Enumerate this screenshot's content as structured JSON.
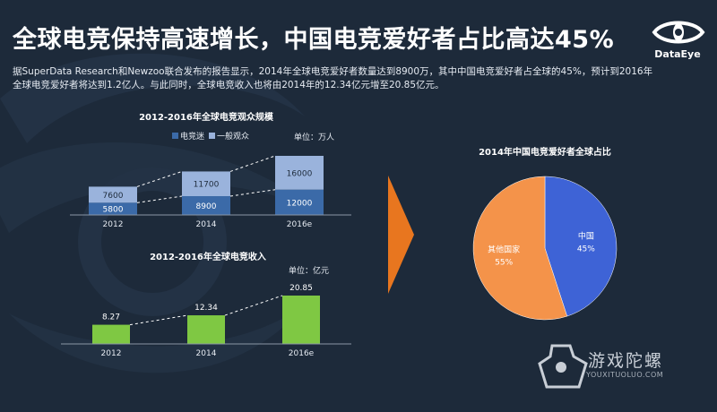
{
  "header": {
    "title": "全球电竞保持高速增长，中国电竞爱好者占比高达45%",
    "description": "据SuperData Research和Newzoo联合发布的报告显示，2014年全球电竞爱好者数量达到8900万，其中中国电竞爱好者占全球的45%，预计到2016年全球电竞爱好者将达到1.2亿人。与此同时，全球电竞收入也将由2014年的12.34亿元增至20.85亿元。",
    "brand": "DataEye"
  },
  "watermark": {
    "title": "游戏陀螺",
    "subtitle": "YOUXITUOLUO.COM"
  },
  "colors": {
    "background": "#1d2a3a",
    "esports_fans": "#3b6aa8",
    "casual_viewers": "#9ab3dc",
    "revenue_bar": "#7fc843",
    "china_slice": "#3e63d6",
    "other_slice": "#f4934a",
    "arrow": "#e8761f"
  },
  "chart_data": [
    {
      "type": "bar",
      "stacked": true,
      "title": "2012-2016年全球电竞观众规模",
      "unit": "单位：万人",
      "categories": [
        "2012",
        "2014",
        "2016e"
      ],
      "series": [
        {
          "name": "电竞迷",
          "values": [
            5800,
            8900,
            12000
          ]
        },
        {
          "name": "一般观众",
          "values": [
            7600,
            11700,
            16000
          ]
        }
      ],
      "legend": "top"
    },
    {
      "type": "bar",
      "title": "2012-2016年全球电竞收入",
      "unit": "单位：亿元",
      "categories": [
        "2012",
        "2014",
        "2016e"
      ],
      "values": [
        8.27,
        12.34,
        20.85
      ]
    },
    {
      "type": "pie",
      "title": "2014年中国电竞爱好者全球占比",
      "slices": [
        {
          "label": "中国",
          "value": 45,
          "display": "45%"
        },
        {
          "label": "其他国家",
          "value": 55,
          "display": "55%"
        }
      ]
    }
  ]
}
